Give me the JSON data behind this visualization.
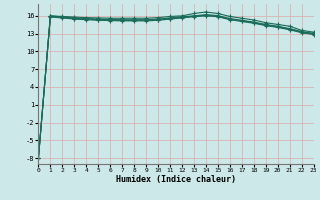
{
  "xlabel": "Humidex (Indice chaleur)",
  "bg_color": "#cce8e8",
  "grid_color": "#ddaaaa",
  "line_color": "#1a6b5a",
  "xlim": [
    0,
    23
  ],
  "ylim": [
    -9,
    18
  ],
  "yticks": [
    -8,
    -5,
    -2,
    1,
    4,
    7,
    10,
    13,
    16
  ],
  "xticks": [
    0,
    1,
    2,
    3,
    4,
    5,
    6,
    7,
    8,
    9,
    10,
    11,
    12,
    13,
    14,
    15,
    16,
    17,
    18,
    19,
    20,
    21,
    22,
    23
  ],
  "series": [
    [
      -8.0,
      16.0,
      15.9,
      15.8,
      15.7,
      15.65,
      15.6,
      15.6,
      15.6,
      15.6,
      15.7,
      15.9,
      16.0,
      16.4,
      16.65,
      16.4,
      15.9,
      15.6,
      15.3,
      14.85,
      14.55,
      14.25,
      13.55,
      13.25
    ],
    [
      -8.0,
      16.0,
      15.8,
      15.65,
      15.55,
      15.45,
      15.4,
      15.35,
      15.35,
      15.35,
      15.45,
      15.65,
      15.85,
      16.0,
      16.2,
      16.05,
      15.55,
      15.25,
      14.95,
      14.55,
      14.25,
      13.85,
      13.35,
      13.05
    ],
    [
      -8.0,
      15.9,
      15.75,
      15.55,
      15.45,
      15.35,
      15.3,
      15.25,
      15.25,
      15.25,
      15.35,
      15.55,
      15.75,
      15.95,
      16.1,
      15.95,
      15.45,
      15.15,
      14.85,
      14.45,
      14.15,
      13.75,
      13.25,
      12.95
    ],
    [
      -8.0,
      15.8,
      15.65,
      15.45,
      15.35,
      15.25,
      15.2,
      15.15,
      15.15,
      15.15,
      15.25,
      15.45,
      15.65,
      15.85,
      16.0,
      15.85,
      15.35,
      15.05,
      14.75,
      14.35,
      14.05,
      13.65,
      13.15,
      12.85
    ]
  ]
}
